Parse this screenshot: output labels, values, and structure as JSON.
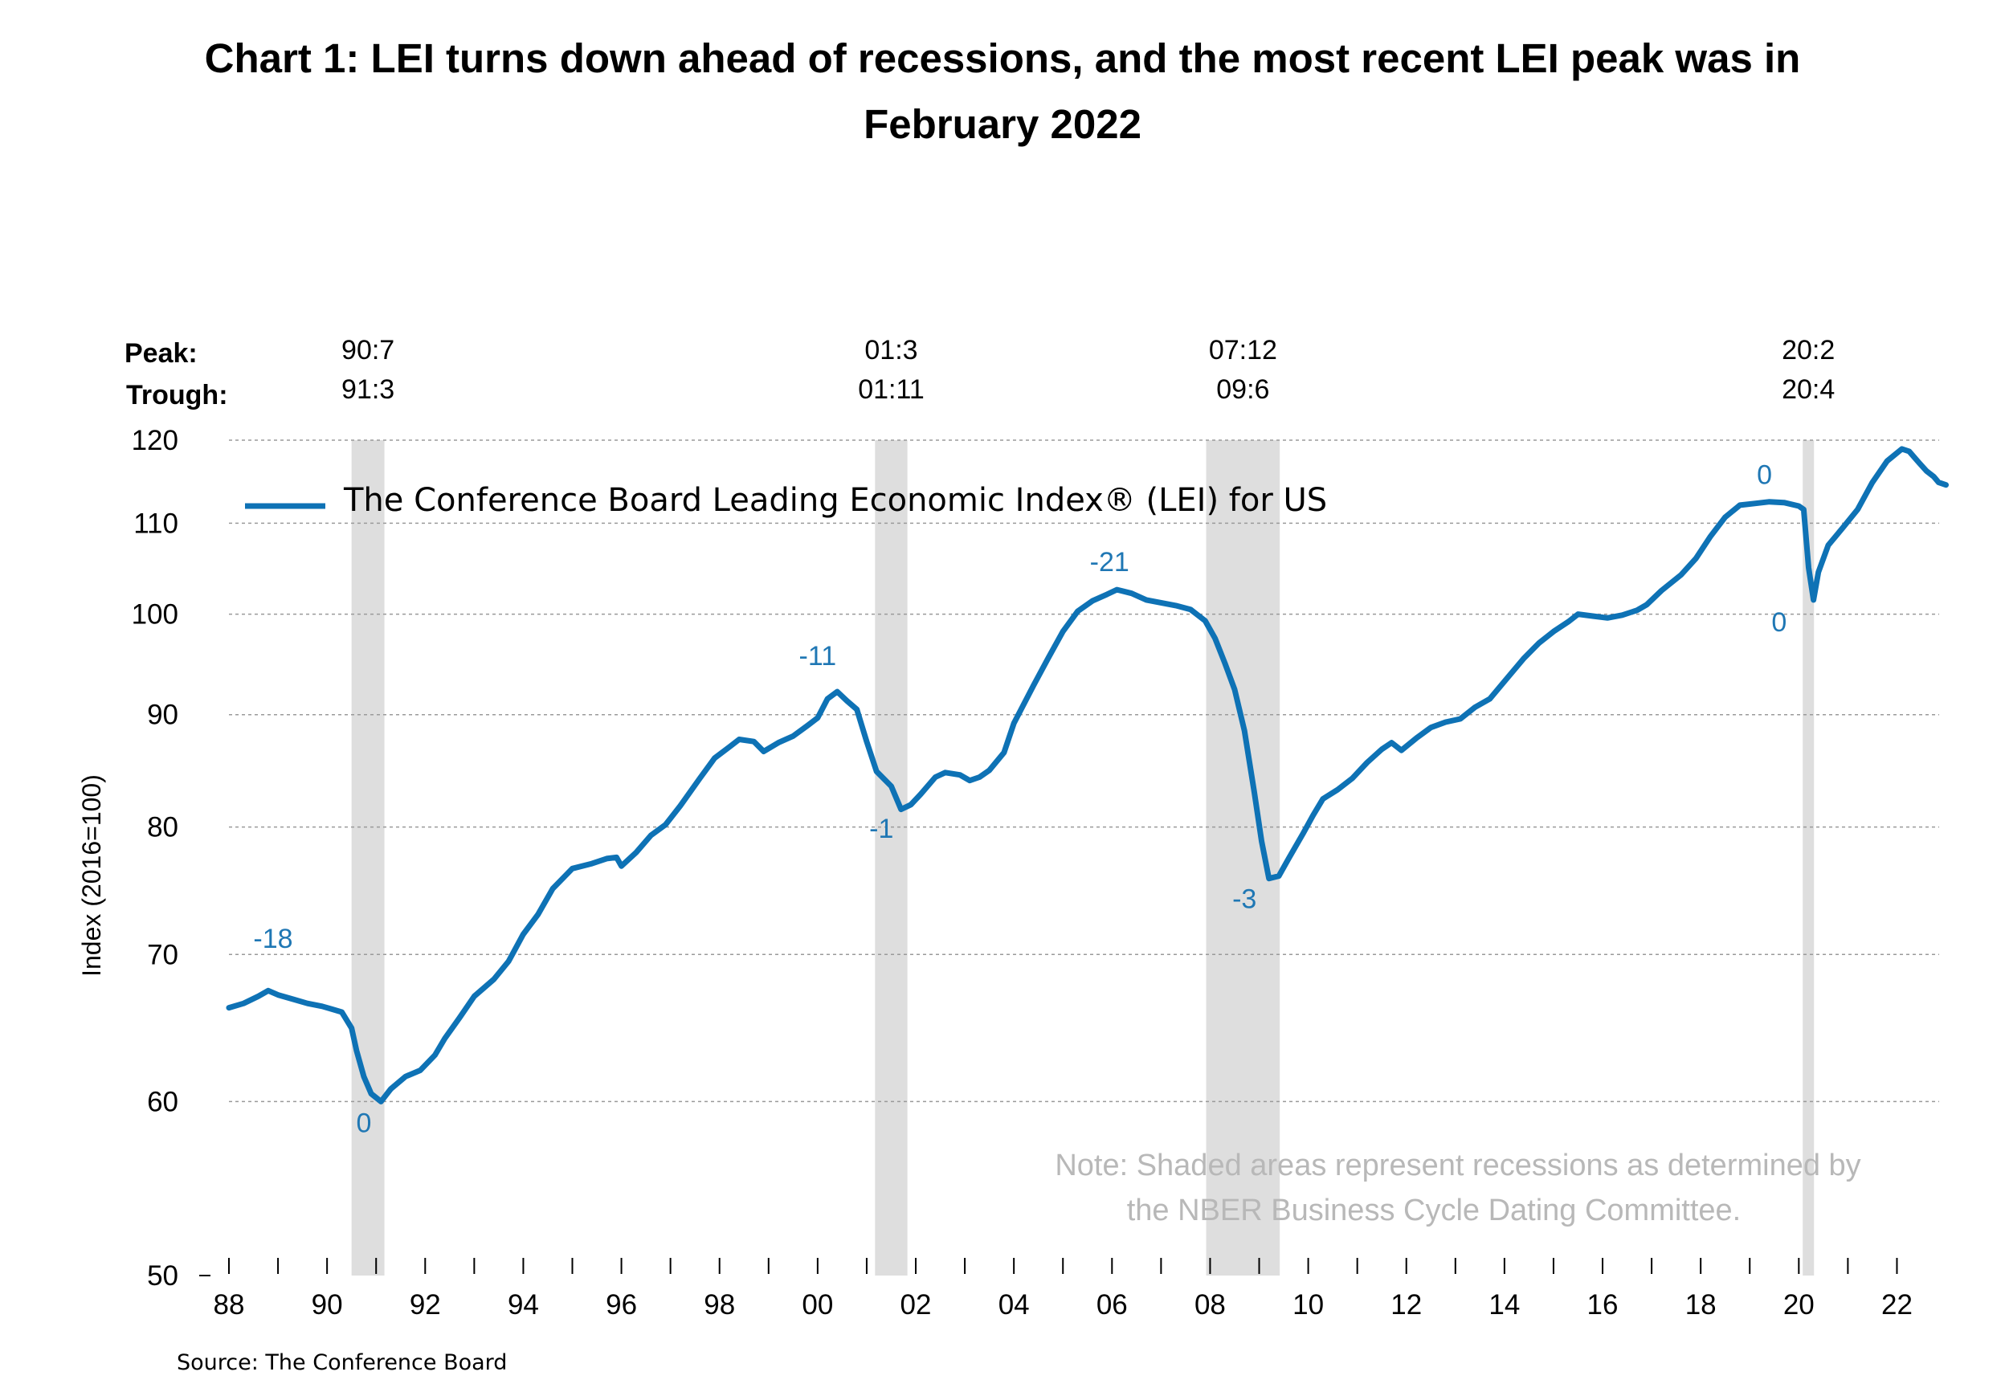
{
  "title_line1": "Chart 1: LEI turns down ahead of recessions, and the most recent LEI peak was in",
  "title_line2": "February 2022",
  "header": {
    "peak_label": "Peak:",
    "trough_label": "Trough:"
  },
  "recessions": [
    {
      "peak": "90:7",
      "trough": "91:3",
      "start": 1990.5,
      "end": 1991.17
    },
    {
      "peak": "01:3",
      "trough": "01:11",
      "start": 2001.17,
      "end": 2001.83
    },
    {
      "peak": "07:12",
      "trough": "09:6",
      "start": 2007.92,
      "end": 2009.42
    },
    {
      "peak": "20:2",
      "trough": "20:4",
      "start": 2020.08,
      "end": 2020.25
    }
  ],
  "note_line1": "Note: Shaded areas represent recessions as determined by",
  "note_line2": "the NBER Business Cycle Dating Committee.",
  "source": "Source: The Conference Board",
  "colors": {
    "line": "#0e72b5",
    "annotation": "#1f77b4",
    "recession": "#dedede",
    "grid": "#9a9a9a",
    "note": "#b8b8b8"
  },
  "chart_data": {
    "type": "line",
    "title": "Chart 1: LEI turns down ahead of recessions, and the most recent LEI peak was in February 2022",
    "ylabel": "Index (2016=100)",
    "y_scale": "log",
    "ylim": [
      50,
      120
    ],
    "xlim": [
      1988,
      2022.5
    ],
    "y_ticks": [
      50,
      60,
      70,
      80,
      90,
      100,
      110,
      120
    ],
    "x_ticks": [
      {
        "value": 1988,
        "label": "88"
      },
      {
        "value": 1990,
        "label": "90"
      },
      {
        "value": 1992,
        "label": "92"
      },
      {
        "value": 1994,
        "label": "94"
      },
      {
        "value": 1996,
        "label": "96"
      },
      {
        "value": 1998,
        "label": "98"
      },
      {
        "value": 2000,
        "label": "00"
      },
      {
        "value": 2002,
        "label": "02"
      },
      {
        "value": 2004,
        "label": "04"
      },
      {
        "value": 2006,
        "label": "06"
      },
      {
        "value": 2008,
        "label": "08"
      },
      {
        "value": 2010,
        "label": "10"
      },
      {
        "value": 2012,
        "label": "12"
      },
      {
        "value": 2014,
        "label": "14"
      },
      {
        "value": 2016,
        "label": "16"
      },
      {
        "value": 2018,
        "label": "18"
      },
      {
        "value": 2020,
        "label": "20"
      },
      {
        "value": 2022,
        "label": "22"
      }
    ],
    "grid": true,
    "legend_position": "top-left",
    "series": [
      {
        "name": "The Conference Board Leading Economic Index® (LEI) for US",
        "points": [
          [
            1988.0,
            66.2
          ],
          [
            1988.3,
            66.5
          ],
          [
            1988.6,
            67.0
          ],
          [
            1988.8,
            67.4
          ],
          [
            1989.0,
            67.1
          ],
          [
            1989.3,
            66.8
          ],
          [
            1989.6,
            66.5
          ],
          [
            1989.9,
            66.3
          ],
          [
            1990.1,
            66.1
          ],
          [
            1990.3,
            65.9
          ],
          [
            1990.5,
            64.8
          ],
          [
            1990.6,
            63.3
          ],
          [
            1990.75,
            61.6
          ],
          [
            1990.9,
            60.5
          ],
          [
            1991.1,
            60.0
          ],
          [
            1991.3,
            60.8
          ],
          [
            1991.6,
            61.6
          ],
          [
            1991.9,
            62.0
          ],
          [
            1992.2,
            63.0
          ],
          [
            1992.4,
            64.1
          ],
          [
            1992.7,
            65.5
          ],
          [
            1993.0,
            67.0
          ],
          [
            1993.4,
            68.2
          ],
          [
            1993.7,
            69.5
          ],
          [
            1994.0,
            71.5
          ],
          [
            1994.3,
            73.0
          ],
          [
            1994.6,
            75.0
          ],
          [
            1995.0,
            76.6
          ],
          [
            1995.4,
            77.0
          ],
          [
            1995.7,
            77.4
          ],
          [
            1995.9,
            77.5
          ],
          [
            1996.0,
            76.8
          ],
          [
            1996.3,
            77.9
          ],
          [
            1996.6,
            79.3
          ],
          [
            1996.9,
            80.2
          ],
          [
            1997.2,
            81.8
          ],
          [
            1997.6,
            84.2
          ],
          [
            1997.9,
            86.0
          ],
          [
            1998.2,
            87.0
          ],
          [
            1998.4,
            87.7
          ],
          [
            1998.7,
            87.5
          ],
          [
            1998.9,
            86.6
          ],
          [
            1999.2,
            87.4
          ],
          [
            1999.5,
            88.0
          ],
          [
            1999.8,
            89.0
          ],
          [
            2000.0,
            89.7
          ],
          [
            2000.2,
            91.5
          ],
          [
            2000.4,
            92.2
          ],
          [
            2000.6,
            91.3
          ],
          [
            2000.8,
            90.5
          ],
          [
            2001.0,
            87.5
          ],
          [
            2001.2,
            84.8
          ],
          [
            2001.5,
            83.5
          ],
          [
            2001.7,
            81.5
          ],
          [
            2001.9,
            81.9
          ],
          [
            2002.1,
            82.8
          ],
          [
            2002.4,
            84.3
          ],
          [
            2002.6,
            84.7
          ],
          [
            2002.9,
            84.5
          ],
          [
            2003.1,
            84.0
          ],
          [
            2003.3,
            84.3
          ],
          [
            2003.5,
            84.9
          ],
          [
            2003.8,
            86.5
          ],
          [
            2004.0,
            89.2
          ],
          [
            2004.4,
            92.8
          ],
          [
            2004.7,
            95.5
          ],
          [
            2005.0,
            98.2
          ],
          [
            2005.3,
            100.3
          ],
          [
            2005.6,
            101.4
          ],
          [
            2005.9,
            102.1
          ],
          [
            2006.1,
            102.6
          ],
          [
            2006.4,
            102.2
          ],
          [
            2006.7,
            101.5
          ],
          [
            2007.0,
            101.2
          ],
          [
            2007.3,
            100.9
          ],
          [
            2007.6,
            100.5
          ],
          [
            2007.9,
            99.3
          ],
          [
            2008.1,
            97.5
          ],
          [
            2008.3,
            95.0
          ],
          [
            2008.5,
            92.4
          ],
          [
            2008.7,
            88.5
          ],
          [
            2008.9,
            83.0
          ],
          [
            2009.05,
            78.8
          ],
          [
            2009.2,
            75.8
          ],
          [
            2009.4,
            76.0
          ],
          [
            2009.6,
            77.4
          ],
          [
            2009.9,
            79.5
          ],
          [
            2010.1,
            81.0
          ],
          [
            2010.3,
            82.4
          ],
          [
            2010.6,
            83.2
          ],
          [
            2010.9,
            84.2
          ],
          [
            2011.2,
            85.6
          ],
          [
            2011.5,
            86.8
          ],
          [
            2011.7,
            87.4
          ],
          [
            2011.9,
            86.7
          ],
          [
            2012.2,
            87.8
          ],
          [
            2012.5,
            88.8
          ],
          [
            2012.8,
            89.3
          ],
          [
            2013.1,
            89.6
          ],
          [
            2013.4,
            90.7
          ],
          [
            2013.7,
            91.5
          ],
          [
            2014.0,
            93.2
          ],
          [
            2014.4,
            95.5
          ],
          [
            2014.7,
            97.0
          ],
          [
            2015.0,
            98.2
          ],
          [
            2015.3,
            99.2
          ],
          [
            2015.5,
            100.0
          ],
          [
            2015.8,
            99.8
          ],
          [
            2016.1,
            99.6
          ],
          [
            2016.4,
            99.9
          ],
          [
            2016.7,
            100.4
          ],
          [
            2016.9,
            101.0
          ],
          [
            2017.2,
            102.5
          ],
          [
            2017.6,
            104.2
          ],
          [
            2017.9,
            106.0
          ],
          [
            2018.2,
            108.5
          ],
          [
            2018.5,
            110.7
          ],
          [
            2018.8,
            112.1
          ],
          [
            2019.1,
            112.3
          ],
          [
            2019.4,
            112.5
          ],
          [
            2019.7,
            112.4
          ],
          [
            2020.0,
            112.0
          ],
          [
            2020.1,
            111.6
          ],
          [
            2020.2,
            105.0
          ],
          [
            2020.3,
            101.5
          ],
          [
            2020.4,
            104.5
          ],
          [
            2020.6,
            107.5
          ],
          [
            2020.9,
            109.5
          ],
          [
            2021.2,
            111.6
          ],
          [
            2021.5,
            114.8
          ],
          [
            2021.8,
            117.4
          ],
          [
            2022.1,
            118.9
          ],
          [
            2022.25,
            118.6
          ],
          [
            2022.45,
            117.2
          ],
          [
            2022.6,
            116.2
          ],
          [
            2022.75,
            115.5
          ],
          [
            2022.85,
            114.8
          ],
          [
            2023.0,
            114.5
          ]
        ]
      }
    ],
    "annotations": [
      {
        "x": 1988.9,
        "y": 70.5,
        "text": "-18"
      },
      {
        "x": 1990.75,
        "y": 58.1,
        "text": "0"
      },
      {
        "x": 2000.0,
        "y": 94.8,
        "text": "-11"
      },
      {
        "x": 2001.3,
        "y": 79.1,
        "text": "-1"
      },
      {
        "x": 2005.95,
        "y": 104.6,
        "text": "-21"
      },
      {
        "x": 2008.7,
        "y": 73.5,
        "text": "-3"
      },
      {
        "x": 2019.3,
        "y": 114.6,
        "text": "0"
      },
      {
        "x": 2019.6,
        "y": 98.2,
        "text": "0"
      }
    ]
  }
}
